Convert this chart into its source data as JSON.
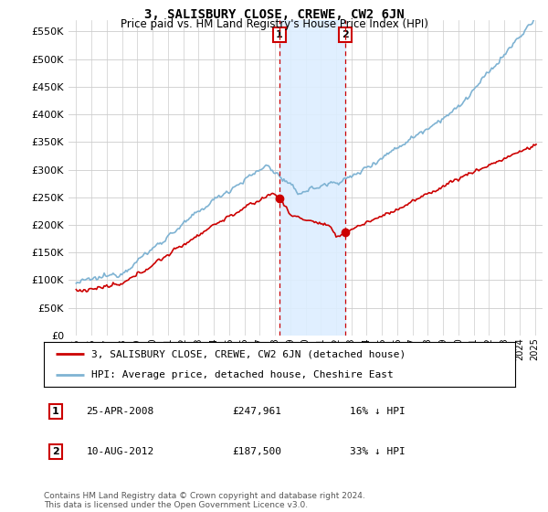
{
  "title": "3, SALISBURY CLOSE, CREWE, CW2 6JN",
  "subtitle": "Price paid vs. HM Land Registry's House Price Index (HPI)",
  "hpi_label": "HPI: Average price, detached house, Cheshire East",
  "property_label": "3, SALISBURY CLOSE, CREWE, CW2 6JN (detached house)",
  "hpi_color": "#7fb3d3",
  "property_color": "#cc0000",
  "sale1_x": 2008.29,
  "sale1_price": 247961,
  "sale1_date": "25-APR-2008",
  "sale1_label": "16% ↓ HPI",
  "sale2_x": 2012.6,
  "sale2_price": 187500,
  "sale2_date": "10-AUG-2012",
  "sale2_label": "33% ↓ HPI",
  "ylim": [
    0,
    570000
  ],
  "yticks": [
    0,
    50000,
    100000,
    150000,
    200000,
    250000,
    300000,
    350000,
    400000,
    450000,
    500000,
    550000
  ],
  "xmin": 1994.5,
  "xmax": 2025.5,
  "footer": "Contains HM Land Registry data © Crown copyright and database right 2024.\nThis data is licensed under the Open Government Licence v3.0.",
  "bg_color": "#ffffff",
  "grid_color": "#cccccc",
  "shade_color": "#ddeeff"
}
